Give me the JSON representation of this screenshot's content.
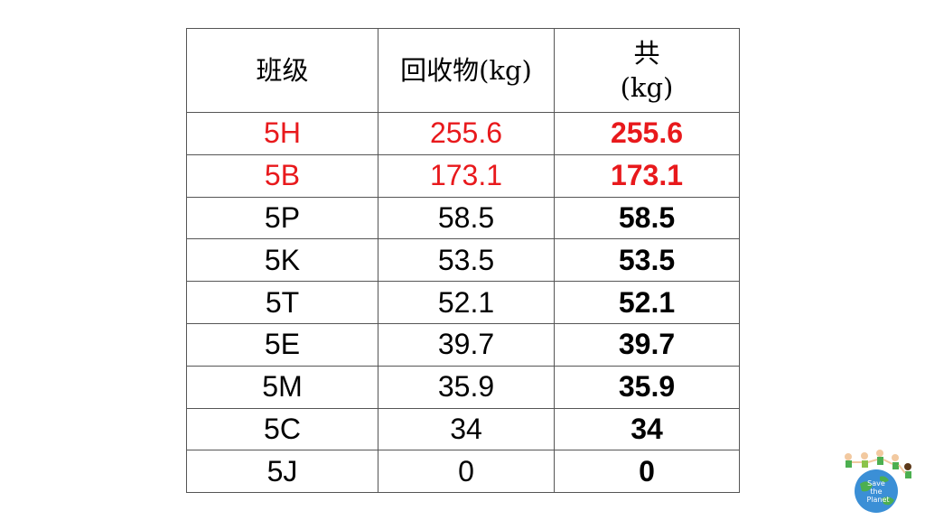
{
  "table": {
    "headers": [
      {
        "lines": [
          "班级"
        ]
      },
      {
        "lines": [
          "回收物(kg)"
        ]
      },
      {
        "lines": [
          "共",
          "(kg)"
        ]
      }
    ],
    "rows": [
      {
        "class": "5H",
        "recycled": "255.6",
        "total": "255.6",
        "highlight": true
      },
      {
        "class": "5B",
        "recycled": "173.1",
        "total": "173.1",
        "highlight": true
      },
      {
        "class": "5P",
        "recycled": "58.5",
        "total": "58.5",
        "highlight": false
      },
      {
        "class": "5K",
        "recycled": "53.5",
        "total": "53.5",
        "highlight": false
      },
      {
        "class": "5T",
        "recycled": "52.1",
        "total": "52.1",
        "highlight": false
      },
      {
        "class": "5E",
        "recycled": "39.7",
        "total": "39.7",
        "highlight": false
      },
      {
        "class": "5M",
        "recycled": "35.9",
        "total": "35.9",
        "highlight": false
      },
      {
        "class": "5C",
        "recycled": "34",
        "total": "34",
        "highlight": false
      },
      {
        "class": "5J",
        "recycled": "0",
        "total": "0",
        "highlight": false
      }
    ]
  },
  "colors": {
    "highlight": "#e8191c",
    "text": "#000000",
    "border": "#555555"
  },
  "logo": {
    "text": "Save the Planet",
    "icon": "save-the-planet-logo"
  }
}
